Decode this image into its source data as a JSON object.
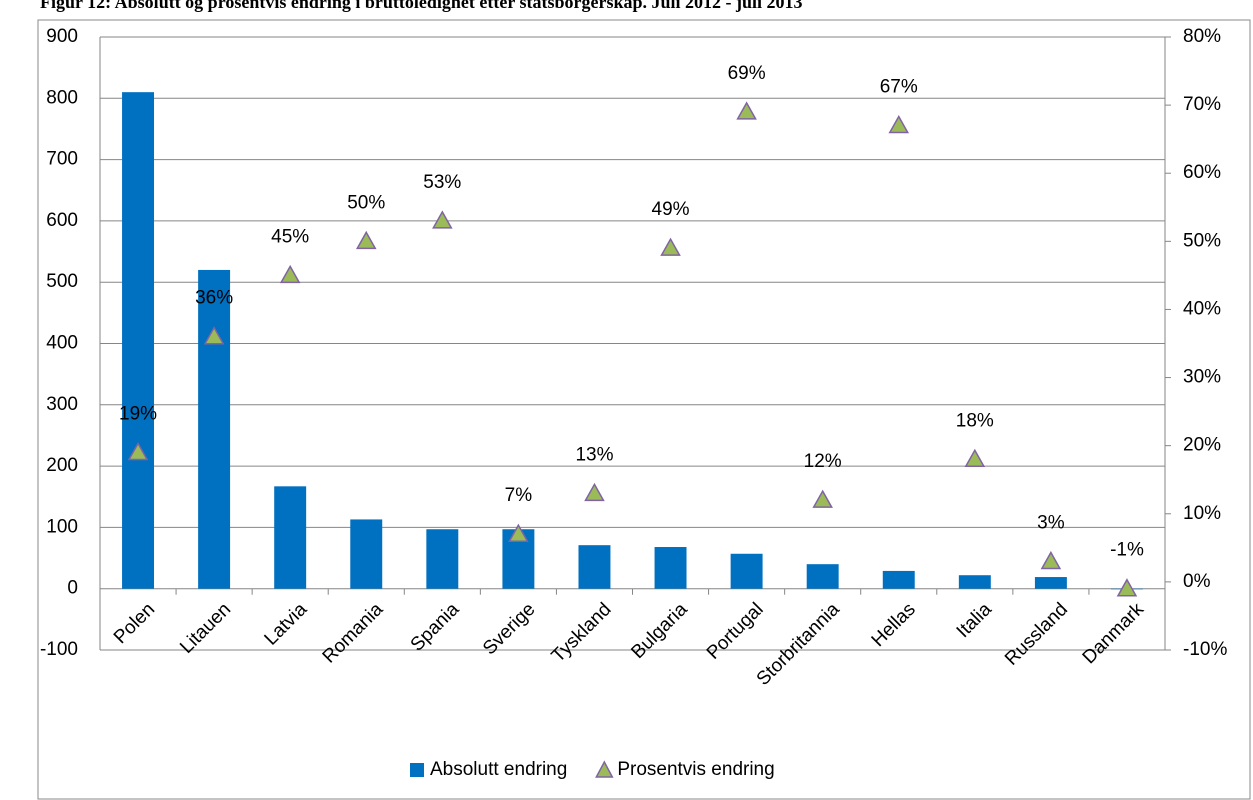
{
  "chart_data": {
    "type": "bar_scatter",
    "title": "Figur 12: Absolutt og prosentvis endring i bruttoledighet etter statsborgerskap. Juli 2012 - juli 2013",
    "categories": [
      "Polen",
      "Litauen",
      "Latvia",
      "Romania",
      "Spania",
      "Sverige",
      "Tyskland",
      "Bulgaria",
      "Portugal",
      "Storbritannia",
      "Hellas",
      "Italia",
      "Russland",
      "Danmark"
    ],
    "series": [
      {
        "name": "Absolutt endring",
        "color": "#0070c0",
        "values": [
          810,
          520,
          167,
          113,
          97,
          97,
          71,
          68,
          57,
          40,
          29,
          22,
          19,
          -1
        ]
      },
      {
        "name": "Prosentvis endring",
        "color": "#9bbb59",
        "axis": "y2",
        "values": [
          19,
          36,
          45,
          50,
          53,
          7,
          13,
          49,
          69,
          12,
          67,
          18,
          3,
          -1
        ],
        "value_labels": [
          "19%",
          "36%",
          "45%",
          "50%",
          "53%",
          "7%",
          "13%",
          "49%",
          "69%",
          "12%",
          "67%",
          "18%",
          "3%",
          "-1%"
        ]
      }
    ],
    "ylim": [
      -100,
      900
    ],
    "yticks": [
      -100,
      0,
      100,
      200,
      300,
      400,
      500,
      600,
      700,
      800,
      900
    ],
    "y2lim": [
      -10,
      80
    ],
    "y2ticks": [
      {
        "value": -10,
        "label": "-10%"
      },
      {
        "value": 0,
        "label": "0%"
      },
      {
        "value": 10,
        "label": "10%"
      },
      {
        "value": 20,
        "label": "20%"
      },
      {
        "value": 30,
        "label": "30%"
      },
      {
        "value": 40,
        "label": "40%"
      },
      {
        "value": 50,
        "label": "50%"
      },
      {
        "value": 60,
        "label": "60%"
      },
      {
        "value": 70,
        "label": "70%"
      },
      {
        "value": 80,
        "label": "80%"
      }
    ],
    "grid": true,
    "legend": "bottom"
  }
}
